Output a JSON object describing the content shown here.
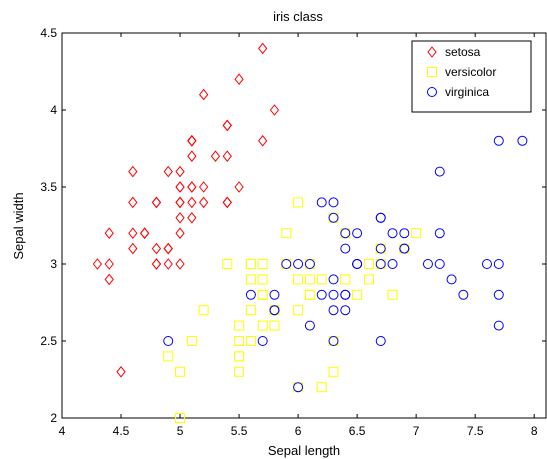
{
  "chart_data": {
    "type": "scatter",
    "title": "iris class",
    "xlabel": "Sepal length",
    "ylabel": "Sepal width",
    "xlim": [
      4,
      8.1
    ],
    "ylim": [
      2,
      4.5
    ],
    "xticks": [
      "4",
      "4.5",
      "5",
      "5.5",
      "6",
      "6.5",
      "7",
      "7.5",
      "8"
    ],
    "yticks": [
      "2",
      "2.5",
      "3",
      "3.5",
      "4",
      "4.5"
    ],
    "grid": false,
    "legend_position": "top-right",
    "series": [
      {
        "name": "setosa",
        "marker": "diamond",
        "color": "#ff0000",
        "points": [
          [
            5.1,
            3.5
          ],
          [
            4.9,
            3.0
          ],
          [
            4.7,
            3.2
          ],
          [
            4.6,
            3.1
          ],
          [
            5.0,
            3.6
          ],
          [
            5.4,
            3.9
          ],
          [
            4.6,
            3.4
          ],
          [
            5.0,
            3.4
          ],
          [
            4.4,
            2.9
          ],
          [
            4.9,
            3.1
          ],
          [
            5.4,
            3.7
          ],
          [
            4.8,
            3.4
          ],
          [
            4.8,
            3.0
          ],
          [
            4.3,
            3.0
          ],
          [
            5.8,
            4.0
          ],
          [
            5.7,
            4.4
          ],
          [
            5.4,
            3.9
          ],
          [
            5.1,
            3.5
          ],
          [
            5.7,
            3.8
          ],
          [
            5.1,
            3.8
          ],
          [
            5.4,
            3.4
          ],
          [
            5.1,
            3.7
          ],
          [
            4.6,
            3.6
          ],
          [
            5.1,
            3.3
          ],
          [
            4.8,
            3.4
          ],
          [
            5.0,
            3.0
          ],
          [
            5.0,
            3.4
          ],
          [
            5.2,
            3.5
          ],
          [
            5.2,
            3.4
          ],
          [
            4.7,
            3.2
          ],
          [
            4.8,
            3.1
          ],
          [
            5.4,
            3.4
          ],
          [
            5.2,
            4.1
          ],
          [
            5.5,
            4.2
          ],
          [
            4.9,
            3.1
          ],
          [
            5.0,
            3.2
          ],
          [
            5.5,
            3.5
          ],
          [
            4.9,
            3.6
          ],
          [
            4.4,
            3.0
          ],
          [
            5.1,
            3.4
          ],
          [
            5.0,
            3.5
          ],
          [
            4.5,
            2.3
          ],
          [
            4.4,
            3.2
          ],
          [
            5.0,
            3.5
          ],
          [
            5.1,
            3.8
          ],
          [
            4.8,
            3.0
          ],
          [
            5.1,
            3.8
          ],
          [
            4.6,
            3.2
          ],
          [
            5.3,
            3.7
          ],
          [
            5.0,
            3.3
          ]
        ]
      },
      {
        "name": "versicolor",
        "marker": "square",
        "color": "#ffff00",
        "points": [
          [
            7.0,
            3.2
          ],
          [
            6.4,
            3.2
          ],
          [
            6.9,
            3.1
          ],
          [
            5.5,
            2.3
          ],
          [
            6.5,
            2.8
          ],
          [
            5.7,
            2.8
          ],
          [
            6.3,
            3.3
          ],
          [
            4.9,
            2.4
          ],
          [
            6.6,
            2.9
          ],
          [
            5.2,
            2.7
          ],
          [
            5.0,
            2.0
          ],
          [
            5.9,
            3.0
          ],
          [
            6.0,
            2.2
          ],
          [
            6.1,
            2.9
          ],
          [
            5.6,
            2.9
          ],
          [
            6.7,
            3.1
          ],
          [
            5.6,
            3.0
          ],
          [
            5.8,
            2.7
          ],
          [
            6.2,
            2.2
          ],
          [
            5.6,
            2.5
          ],
          [
            5.9,
            3.2
          ],
          [
            6.1,
            2.8
          ],
          [
            6.3,
            2.5
          ],
          [
            6.1,
            2.8
          ],
          [
            6.4,
            2.9
          ],
          [
            6.6,
            3.0
          ],
          [
            6.8,
            2.8
          ],
          [
            6.7,
            3.0
          ],
          [
            6.0,
            2.9
          ],
          [
            5.7,
            2.6
          ],
          [
            5.5,
            2.4
          ],
          [
            5.5,
            2.4
          ],
          [
            5.8,
            2.7
          ],
          [
            6.0,
            2.7
          ],
          [
            5.4,
            3.0
          ],
          [
            6.0,
            3.4
          ],
          [
            6.7,
            3.1
          ],
          [
            6.3,
            2.3
          ],
          [
            5.6,
            3.0
          ],
          [
            5.5,
            2.5
          ],
          [
            5.5,
            2.6
          ],
          [
            6.1,
            3.0
          ],
          [
            5.8,
            2.6
          ],
          [
            5.0,
            2.3
          ],
          [
            5.6,
            2.7
          ],
          [
            5.7,
            3.0
          ],
          [
            5.7,
            2.9
          ],
          [
            6.2,
            2.9
          ],
          [
            5.1,
            2.5
          ],
          [
            5.7,
            2.8
          ]
        ]
      },
      {
        "name": "virginica",
        "marker": "circle",
        "color": "#0000ff",
        "points": [
          [
            6.3,
            3.3
          ],
          [
            5.8,
            2.7
          ],
          [
            7.1,
            3.0
          ],
          [
            6.3,
            2.9
          ],
          [
            6.5,
            3.0
          ],
          [
            7.6,
            3.0
          ],
          [
            4.9,
            2.5
          ],
          [
            7.3,
            2.9
          ],
          [
            6.7,
            2.5
          ],
          [
            7.2,
            3.6
          ],
          [
            6.5,
            3.2
          ],
          [
            6.4,
            2.7
          ],
          [
            6.8,
            3.0
          ],
          [
            5.7,
            2.5
          ],
          [
            5.8,
            2.8
          ],
          [
            6.4,
            3.2
          ],
          [
            6.5,
            3.0
          ],
          [
            7.7,
            3.8
          ],
          [
            7.7,
            2.6
          ],
          [
            6.0,
            2.2
          ],
          [
            6.9,
            3.2
          ],
          [
            5.6,
            2.8
          ],
          [
            7.7,
            2.8
          ],
          [
            6.3,
            2.7
          ],
          [
            6.7,
            3.3
          ],
          [
            7.2,
            3.2
          ],
          [
            6.2,
            2.8
          ],
          [
            6.1,
            3.0
          ],
          [
            6.4,
            2.8
          ],
          [
            7.2,
            3.0
          ],
          [
            7.4,
            2.8
          ],
          [
            7.9,
            3.8
          ],
          [
            6.4,
            2.8
          ],
          [
            6.3,
            2.8
          ],
          [
            6.1,
            2.6
          ],
          [
            7.7,
            3.0
          ],
          [
            6.3,
            3.4
          ],
          [
            6.4,
            3.1
          ],
          [
            6.0,
            3.0
          ],
          [
            6.9,
            3.1
          ],
          [
            6.7,
            3.1
          ],
          [
            6.9,
            3.1
          ],
          [
            5.8,
            2.7
          ],
          [
            6.8,
            3.2
          ],
          [
            6.7,
            3.3
          ],
          [
            6.7,
            3.0
          ],
          [
            6.3,
            2.5
          ],
          [
            6.5,
            3.0
          ],
          [
            6.2,
            3.4
          ],
          [
            5.9,
            3.0
          ]
        ]
      }
    ]
  }
}
